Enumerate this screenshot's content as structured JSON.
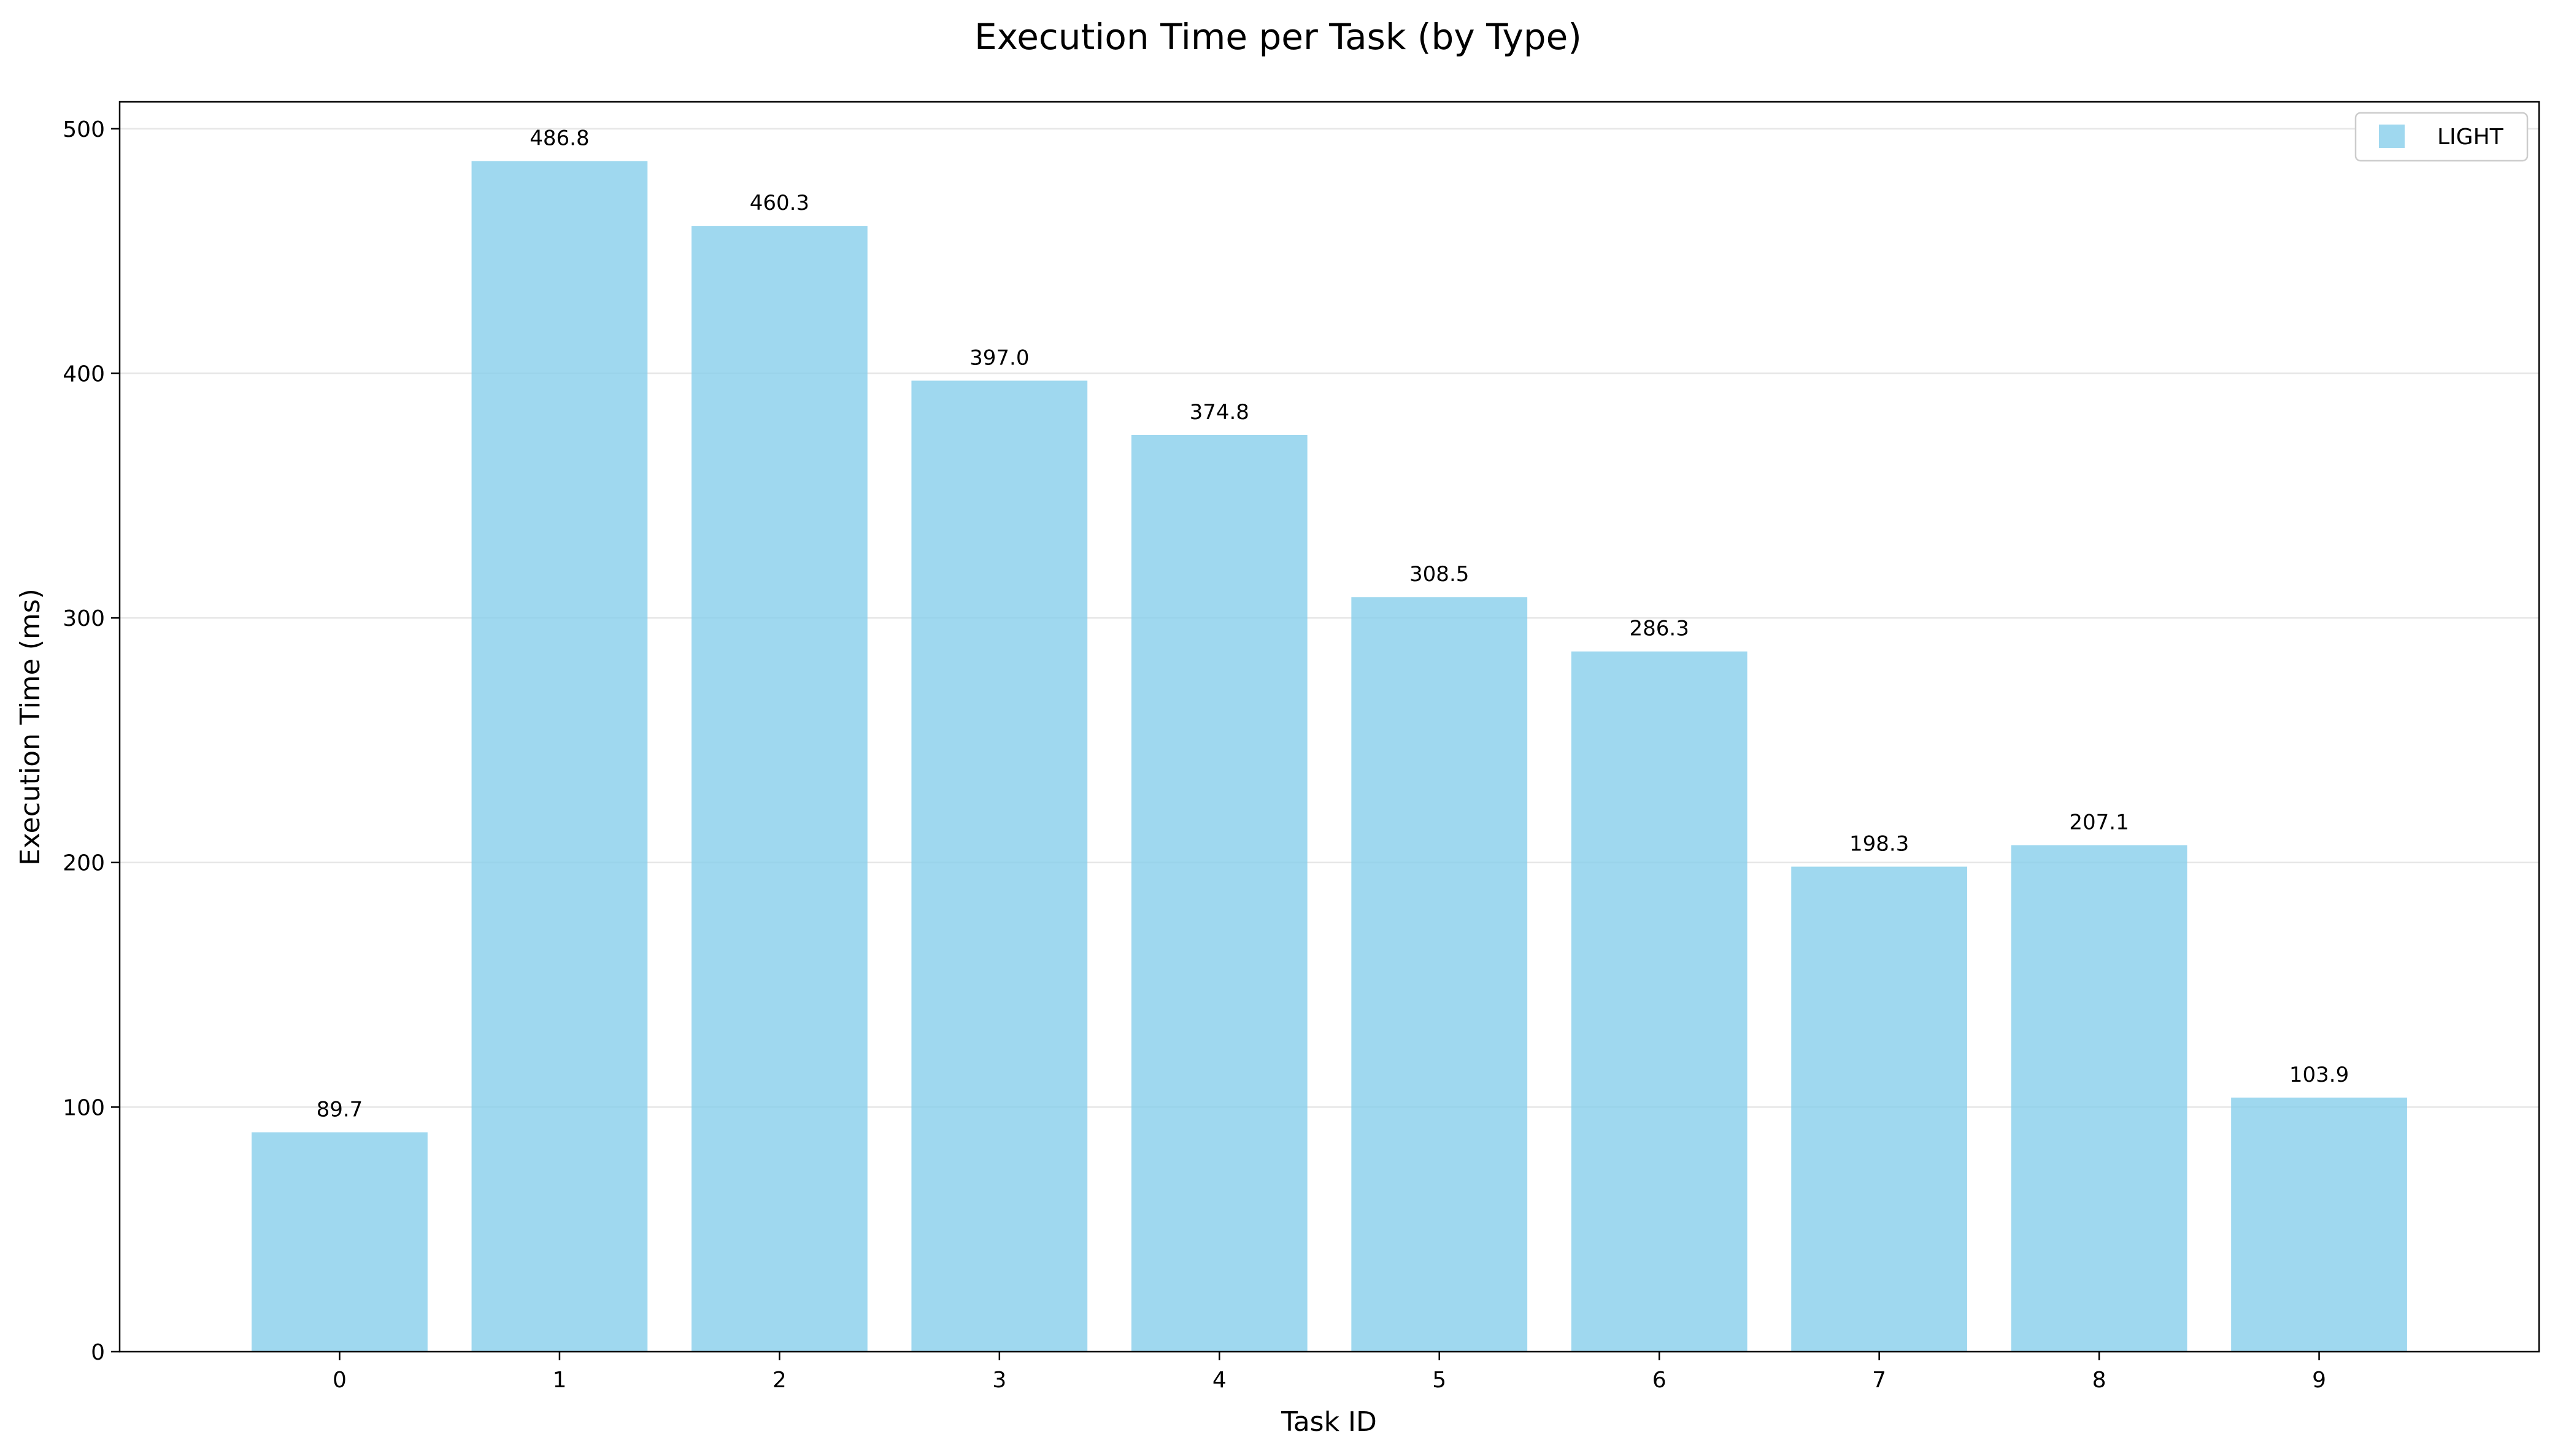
{
  "chart_data": {
    "type": "bar",
    "title": "Execution Time per Task (by Type)",
    "xlabel": "Task ID",
    "ylabel": "Execution Time (ms)",
    "categories": [
      "0",
      "1",
      "2",
      "3",
      "4",
      "5",
      "6",
      "7",
      "8",
      "9"
    ],
    "series": [
      {
        "name": "LIGHT",
        "color": "#87ceeb",
        "values": [
          89.7,
          486.8,
          460.3,
          397.0,
          374.8,
          308.5,
          286.3,
          198.3,
          207.1,
          103.9
        ]
      }
    ],
    "data_labels": [
      "89.7",
      "486.8",
      "460.3",
      "397.0",
      "374.8",
      "308.5",
      "286.3",
      "198.3",
      "207.1",
      "103.9"
    ],
    "ylim": [
      0,
      511
    ],
    "yticks": [
      0,
      100,
      200,
      300,
      400,
      500
    ],
    "grid": "horizontal",
    "legend_position": "top-right"
  }
}
